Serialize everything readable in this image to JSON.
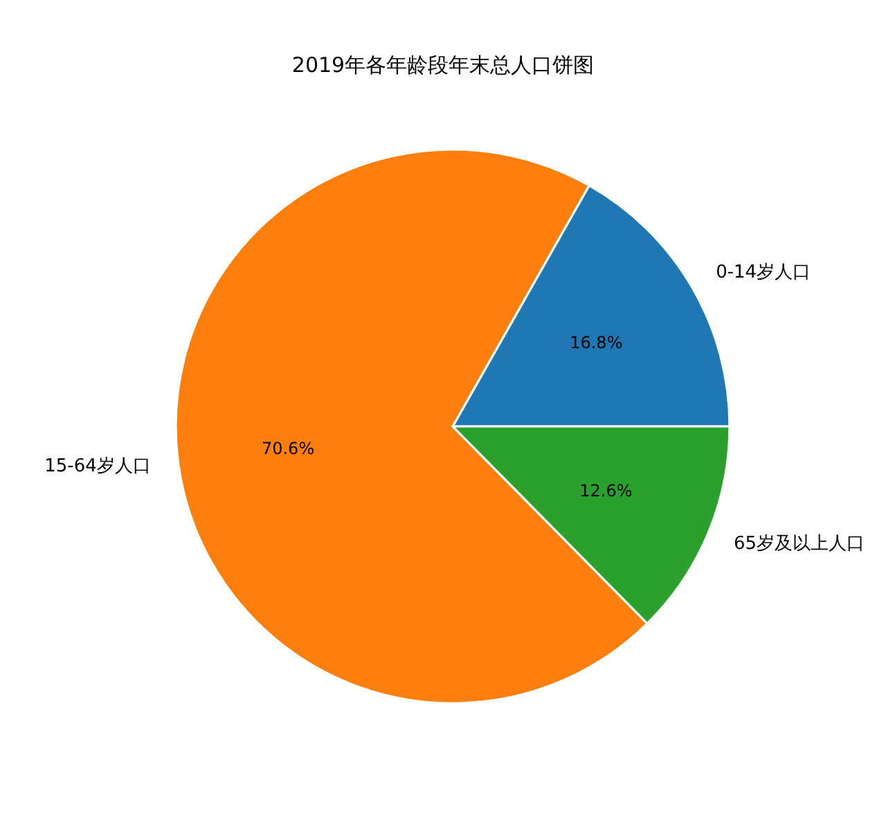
{
  "chart_data": {
    "type": "pie",
    "title": "2019年各年龄段年末总人口饼图",
    "categories": [
      "0-14岁人口",
      "15-64岁人口",
      "65岁及以上人口"
    ],
    "values": [
      16.8,
      70.6,
      12.6
    ],
    "colors": [
      "#1f77b4",
      "#ff7f0e",
      "#2ca02c"
    ],
    "value_labels": [
      "16.8%",
      "70.6%",
      "12.6%"
    ]
  }
}
